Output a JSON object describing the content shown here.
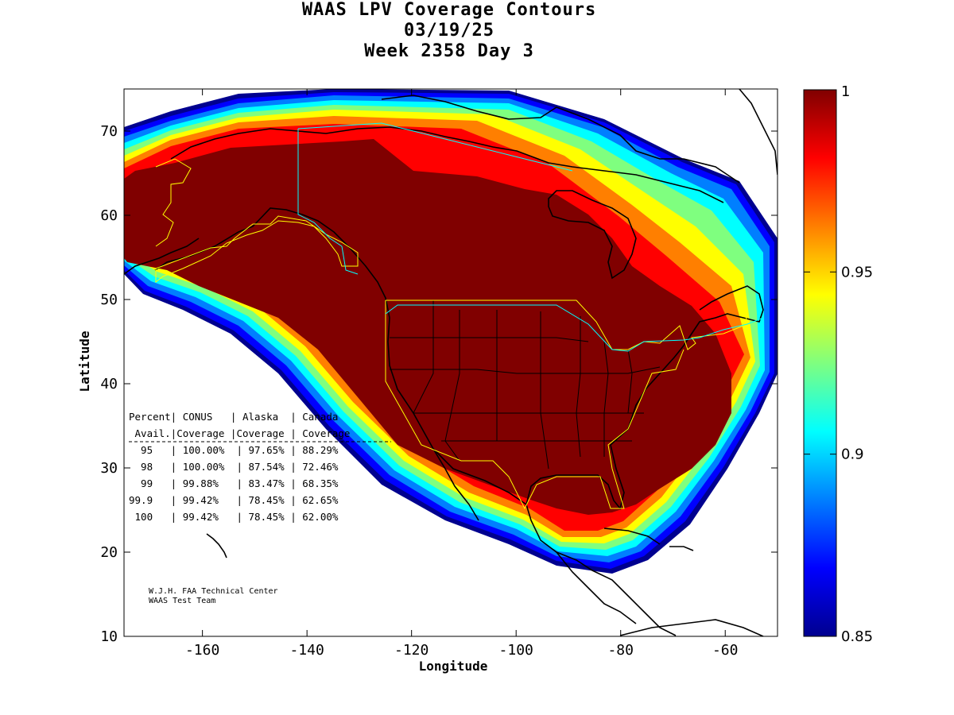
{
  "title": {
    "line1": "WAAS LPV Coverage Contours",
    "line2": "03/19/25",
    "line3": "Week 2358 Day 3"
  },
  "axes": {
    "xlabel": "Longitude",
    "ylabel": "Latitude",
    "xlim": [
      -175,
      -50
    ],
    "ylim": [
      10,
      75
    ],
    "xticks": [
      -160,
      -140,
      -120,
      -100,
      -80,
      -60
    ],
    "yticks": [
      10,
      20,
      30,
      40,
      50,
      60,
      70
    ]
  },
  "colorbar": {
    "min": 0.85,
    "max": 1,
    "tick_values": [
      1,
      0.95,
      0.9,
      0.85
    ],
    "tick_labels": [
      "1",
      "0.95",
      "0.9",
      "0.85"
    ],
    "colormap": "jet",
    "colors": [
      "#00008f",
      "#0000ff",
      "#007fff",
      "#00ffff",
      "#7fff7f",
      "#ffff00",
      "#ff7f00",
      "#ff0000",
      "#800000"
    ]
  },
  "coverage_table": {
    "header1": "Percent| CONUS   | Alaska  | Canada",
    "header2": " Avail.|Coverage |Coverage | Coverage",
    "rows": [
      "  95   | 100.00%  | 97.65% | 88.29%",
      "  98   | 100.00%  | 87.54% | 72.46%",
      "  99   | 99.88%   | 83.47% | 68.35%",
      "99.9   | 99.42%   | 78.45% | 62.65%",
      " 100   | 99.42%   | 78.45% | 62.00%"
    ]
  },
  "credits": {
    "line1": "W.J.H. FAA Technical Center",
    "line2": "WAAS Test Team"
  },
  "boundary_colors": {
    "waas_service_volume": "#ffff00",
    "canada_border": "#00ffff",
    "coastline": "#000000"
  }
}
